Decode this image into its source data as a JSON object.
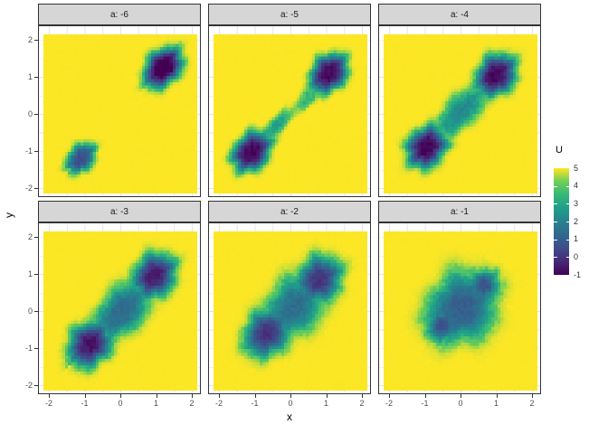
{
  "axes": {
    "x_title": "x",
    "y_title": "y",
    "x_ticks": [
      "-2",
      "-1",
      "0",
      "1",
      "2"
    ],
    "y_ticks": [
      "2",
      "1",
      "0",
      "-1",
      "-2"
    ]
  },
  "legend": {
    "title": "U",
    "labels": [
      "5",
      "4",
      "3",
      "2",
      "1",
      "0",
      "-1"
    ]
  },
  "style": {
    "strip_fill": "#d6d6d6",
    "panel_border": "#333333",
    "grid_color": "#e5e5e5",
    "tick_color": "#333333",
    "tick_label_color": "#4d4d4d",
    "background_color": "#fde725"
  },
  "chart_data": {
    "type": "heatmap",
    "facet_variable": "a",
    "fill_variable": "U",
    "fill_range": [
      -1,
      5
    ],
    "background_value": 5,
    "x_range": [
      -2.15,
      2.15
    ],
    "y_range": [
      -2.15,
      2.15
    ],
    "x_ticks": [
      -2,
      -1,
      0,
      1,
      2
    ],
    "y_ticks": [
      -2,
      -1,
      0,
      1,
      2
    ],
    "legend_values": [
      5,
      4,
      3,
      2,
      1,
      0,
      -1
    ],
    "colormap": "viridis",
    "viridis_stops": [
      "#440154",
      "#482878",
      "#3e4c8a",
      "#31688e",
      "#26828e",
      "#1f9e89",
      "#35b779",
      "#6ece58",
      "#fde725"
    ],
    "grid_cells": 50,
    "facets": [
      {
        "label": "a: -6",
        "a": -6,
        "wells": [
          {
            "cx": 1.2,
            "cy": 1.25,
            "depth": 6.5,
            "sd": 0.6,
            "sp": 0.42,
            "p": 1.7,
            "ph": 0.5
          },
          {
            "cx": -1.1,
            "cy": -1.2,
            "depth": 4.6,
            "sd": 0.46,
            "sp": 0.32,
            "p": 1.7,
            "ph": 2.1
          }
        ]
      },
      {
        "label": "a: -5",
        "a": -5,
        "wells": [
          {
            "cx": 1.08,
            "cy": 1.1,
            "depth": 6.1,
            "sd": 0.58,
            "sp": 0.44,
            "p": 1.7,
            "ph": 1.2
          },
          {
            "cx": -1.08,
            "cy": -1.02,
            "depth": 6.2,
            "sd": 0.6,
            "sp": 0.44,
            "p": 1.7,
            "ph": 3.3
          },
          {
            "cx": 0.5,
            "cy": 0.45,
            "depth": 1.9,
            "sd": 0.5,
            "sp": 0.2,
            "p": 1.4,
            "ph": 0.8
          },
          {
            "cx": -0.4,
            "cy": -0.33,
            "depth": 2.5,
            "sd": 0.62,
            "sp": 0.2,
            "p": 1.4,
            "ph": 4.0
          }
        ]
      },
      {
        "label": "a: -4",
        "a": -4,
        "wells": [
          {
            "cx": 1.0,
            "cy": 1.05,
            "depth": 6.1,
            "sd": 0.6,
            "sp": 0.48,
            "p": 1.6,
            "ph": 2.0
          },
          {
            "cx": -0.95,
            "cy": -0.9,
            "depth": 6.2,
            "sd": 0.6,
            "sp": 0.48,
            "p": 1.6,
            "ph": 5.0
          },
          {
            "cx": 0.02,
            "cy": 0.07,
            "depth": 3.0,
            "sd": 0.95,
            "sp": 0.4,
            "p": 1.5,
            "ph": 1.0
          }
        ]
      },
      {
        "label": "a: -3",
        "a": -3,
        "wells": [
          {
            "cx": 0.95,
            "cy": 0.95,
            "depth": 5.7,
            "sd": 0.64,
            "sp": 0.52,
            "p": 1.5,
            "ph": 2.6
          },
          {
            "cx": -0.85,
            "cy": -0.9,
            "depth": 5.9,
            "sd": 0.64,
            "sp": 0.52,
            "p": 1.5,
            "ph": 0.3
          },
          {
            "cx": 0.05,
            "cy": 0.0,
            "depth": 3.9,
            "sd": 1.0,
            "sp": 0.55,
            "p": 1.5,
            "ph": 1.9
          }
        ]
      },
      {
        "label": "a: -2",
        "a": -2,
        "wells": [
          {
            "cx": 0.8,
            "cy": 0.85,
            "depth": 5.2,
            "sd": 0.66,
            "sp": 0.56,
            "p": 1.45,
            "ph": 3.1
          },
          {
            "cx": -0.65,
            "cy": -0.6,
            "depth": 5.3,
            "sd": 0.66,
            "sp": 0.56,
            "p": 1.45,
            "ph": 1.4
          },
          {
            "cx": 0.1,
            "cy": 0.12,
            "depth": 3.8,
            "sd": 1.0,
            "sp": 0.68,
            "p": 1.45,
            "ph": 2.2
          }
        ]
      },
      {
        "label": "a: -1",
        "a": -1,
        "wells": [
          {
            "cx": 0.05,
            "cy": 0.1,
            "depth": 4.2,
            "sd": 1.02,
            "sp": 0.88,
            "p": 1.55,
            "ph": 2.8
          },
          {
            "cx": 0.65,
            "cy": 0.7,
            "depth": 4.6,
            "sd": 0.42,
            "sp": 0.4,
            "p": 1.3,
            "ph": 0.9
          },
          {
            "cx": -0.5,
            "cy": -0.4,
            "depth": 4.6,
            "sd": 0.45,
            "sp": 0.42,
            "p": 1.3,
            "ph": 1.6
          }
        ]
      }
    ]
  }
}
